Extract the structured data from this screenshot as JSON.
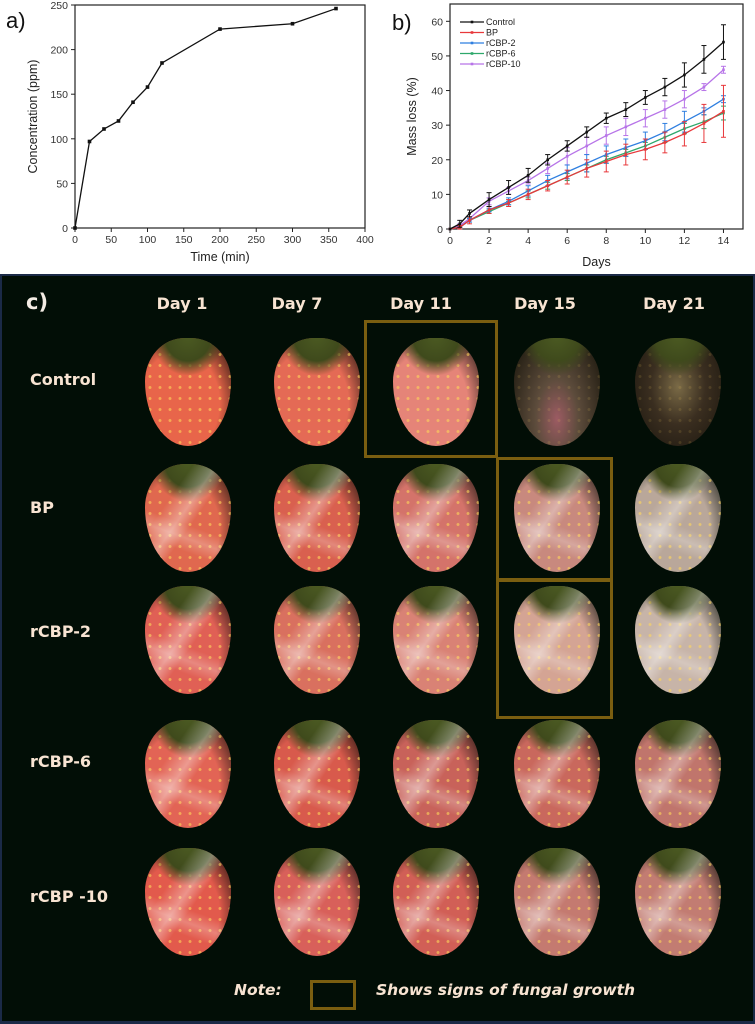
{
  "figure": {
    "panels": {
      "a": {
        "letter": "a)"
      },
      "b": {
        "letter": "b)"
      },
      "c": {
        "letter": "c)"
      }
    }
  },
  "chart_data": [
    {
      "id": "a",
      "type": "line",
      "title": "",
      "xlabel": "Time (min)",
      "ylabel": "Concentration (ppm)",
      "xlim": [
        0,
        400
      ],
      "ylim": [
        0,
        250
      ],
      "xticks": [
        0,
        50,
        100,
        150,
        200,
        250,
        300,
        350,
        400
      ],
      "yticks": [
        0,
        50,
        100,
        150,
        200,
        250
      ],
      "grid": false,
      "series": [
        {
          "name": "Concentration",
          "color": "#111111",
          "x": [
            0,
            20,
            40,
            60,
            80,
            100,
            120,
            200,
            300,
            360
          ],
          "y": [
            0,
            97,
            111,
            120,
            141,
            158,
            185,
            223,
            229,
            246
          ]
        }
      ]
    },
    {
      "id": "b",
      "type": "line",
      "title": "",
      "xlabel": "Days",
      "ylabel": "Mass loss (%)",
      "xlim": [
        0,
        15
      ],
      "ylim": [
        0,
        65
      ],
      "xticks": [
        0,
        2,
        4,
        6,
        8,
        10,
        12,
        14
      ],
      "yticks": [
        0,
        10,
        20,
        30,
        40,
        50,
        60
      ],
      "grid": false,
      "legend_position": "top-left",
      "x": [
        0,
        0.5,
        1,
        2,
        3,
        4,
        5,
        6,
        7,
        8,
        9,
        10,
        11,
        12,
        13,
        14
      ],
      "series": [
        {
          "name": "Control",
          "color": "#111111",
          "values": [
            0,
            1.5,
            4.5,
            8.5,
            12,
            15.5,
            20,
            24,
            28,
            32,
            34.5,
            38,
            41,
            44.5,
            49,
            54
          ],
          "error": [
            0,
            1,
            1,
            2,
            2,
            2,
            1.5,
            1.5,
            1.5,
            1.5,
            2,
            2,
            2.5,
            3.5,
            4,
            5
          ]
        },
        {
          "name": "BP",
          "color": "#e8383b",
          "values": [
            0,
            0.5,
            2.5,
            5.5,
            7.5,
            10,
            12.5,
            15,
            17.5,
            19.5,
            21.5,
            23,
            25,
            27.5,
            30.5,
            34
          ],
          "error": [
            0,
            0.5,
            1,
            1,
            1,
            1.5,
            1.5,
            2,
            2.5,
            3,
            3,
            3,
            3,
            3.5,
            5.5,
            7.5
          ]
        },
        {
          "name": "rCBP-2",
          "color": "#2f7fe0",
          "values": [
            0,
            0.5,
            2.5,
            5.5,
            8,
            11,
            14,
            16.5,
            19,
            21.5,
            23.5,
            25.5,
            28,
            31,
            34,
            37.5
          ],
          "error": [
            0,
            0.5,
            0.5,
            0.5,
            1,
            1.5,
            1.5,
            2,
            2.5,
            2.5,
            2.5,
            2.5,
            2.5,
            3,
            1,
            1
          ]
        },
        {
          "name": "rCBP-6",
          "color": "#2ea86b",
          "values": [
            0,
            0.5,
            2.5,
            5,
            7.5,
            10,
            12.5,
            15,
            17.5,
            20,
            22,
            24,
            26.5,
            29,
            31,
            33.5
          ],
          "error": [
            0,
            0.5,
            0.5,
            0.5,
            0.5,
            1,
            1,
            1,
            1,
            1,
            1,
            1,
            1.5,
            1.5,
            2,
            2
          ]
        },
        {
          "name": "rCBP-10",
          "color": "#b774e8",
          "values": [
            0,
            1,
            3,
            8,
            11,
            14,
            17.5,
            21,
            24,
            27,
            29.5,
            32,
            34.5,
            37.5,
            41,
            46
          ],
          "error": [
            0,
            0.5,
            0.5,
            1,
            1,
            1,
            1.5,
            2.5,
            2.5,
            2.5,
            2.5,
            2.5,
            2.5,
            2.5,
            1,
            1
          ]
        }
      ]
    }
  ],
  "photo_grid": {
    "columns": [
      "Day 1",
      "Day 7",
      "Day 11",
      "Day 15",
      "Day 21"
    ],
    "rows": [
      "Control",
      "BP",
      "rCBP-2",
      "rCBP-6",
      "rCBP -10"
    ],
    "fungal_growth_cells": [
      {
        "row": "Control",
        "column": "Day 11"
      },
      {
        "row": "BP",
        "column": "Day 15"
      },
      {
        "row": "rCBP-2",
        "column": "Day 15"
      }
    ],
    "highlight_color": "#7a5e10",
    "note_label": "Note:",
    "note_text": "Shows signs of fungal growth"
  }
}
